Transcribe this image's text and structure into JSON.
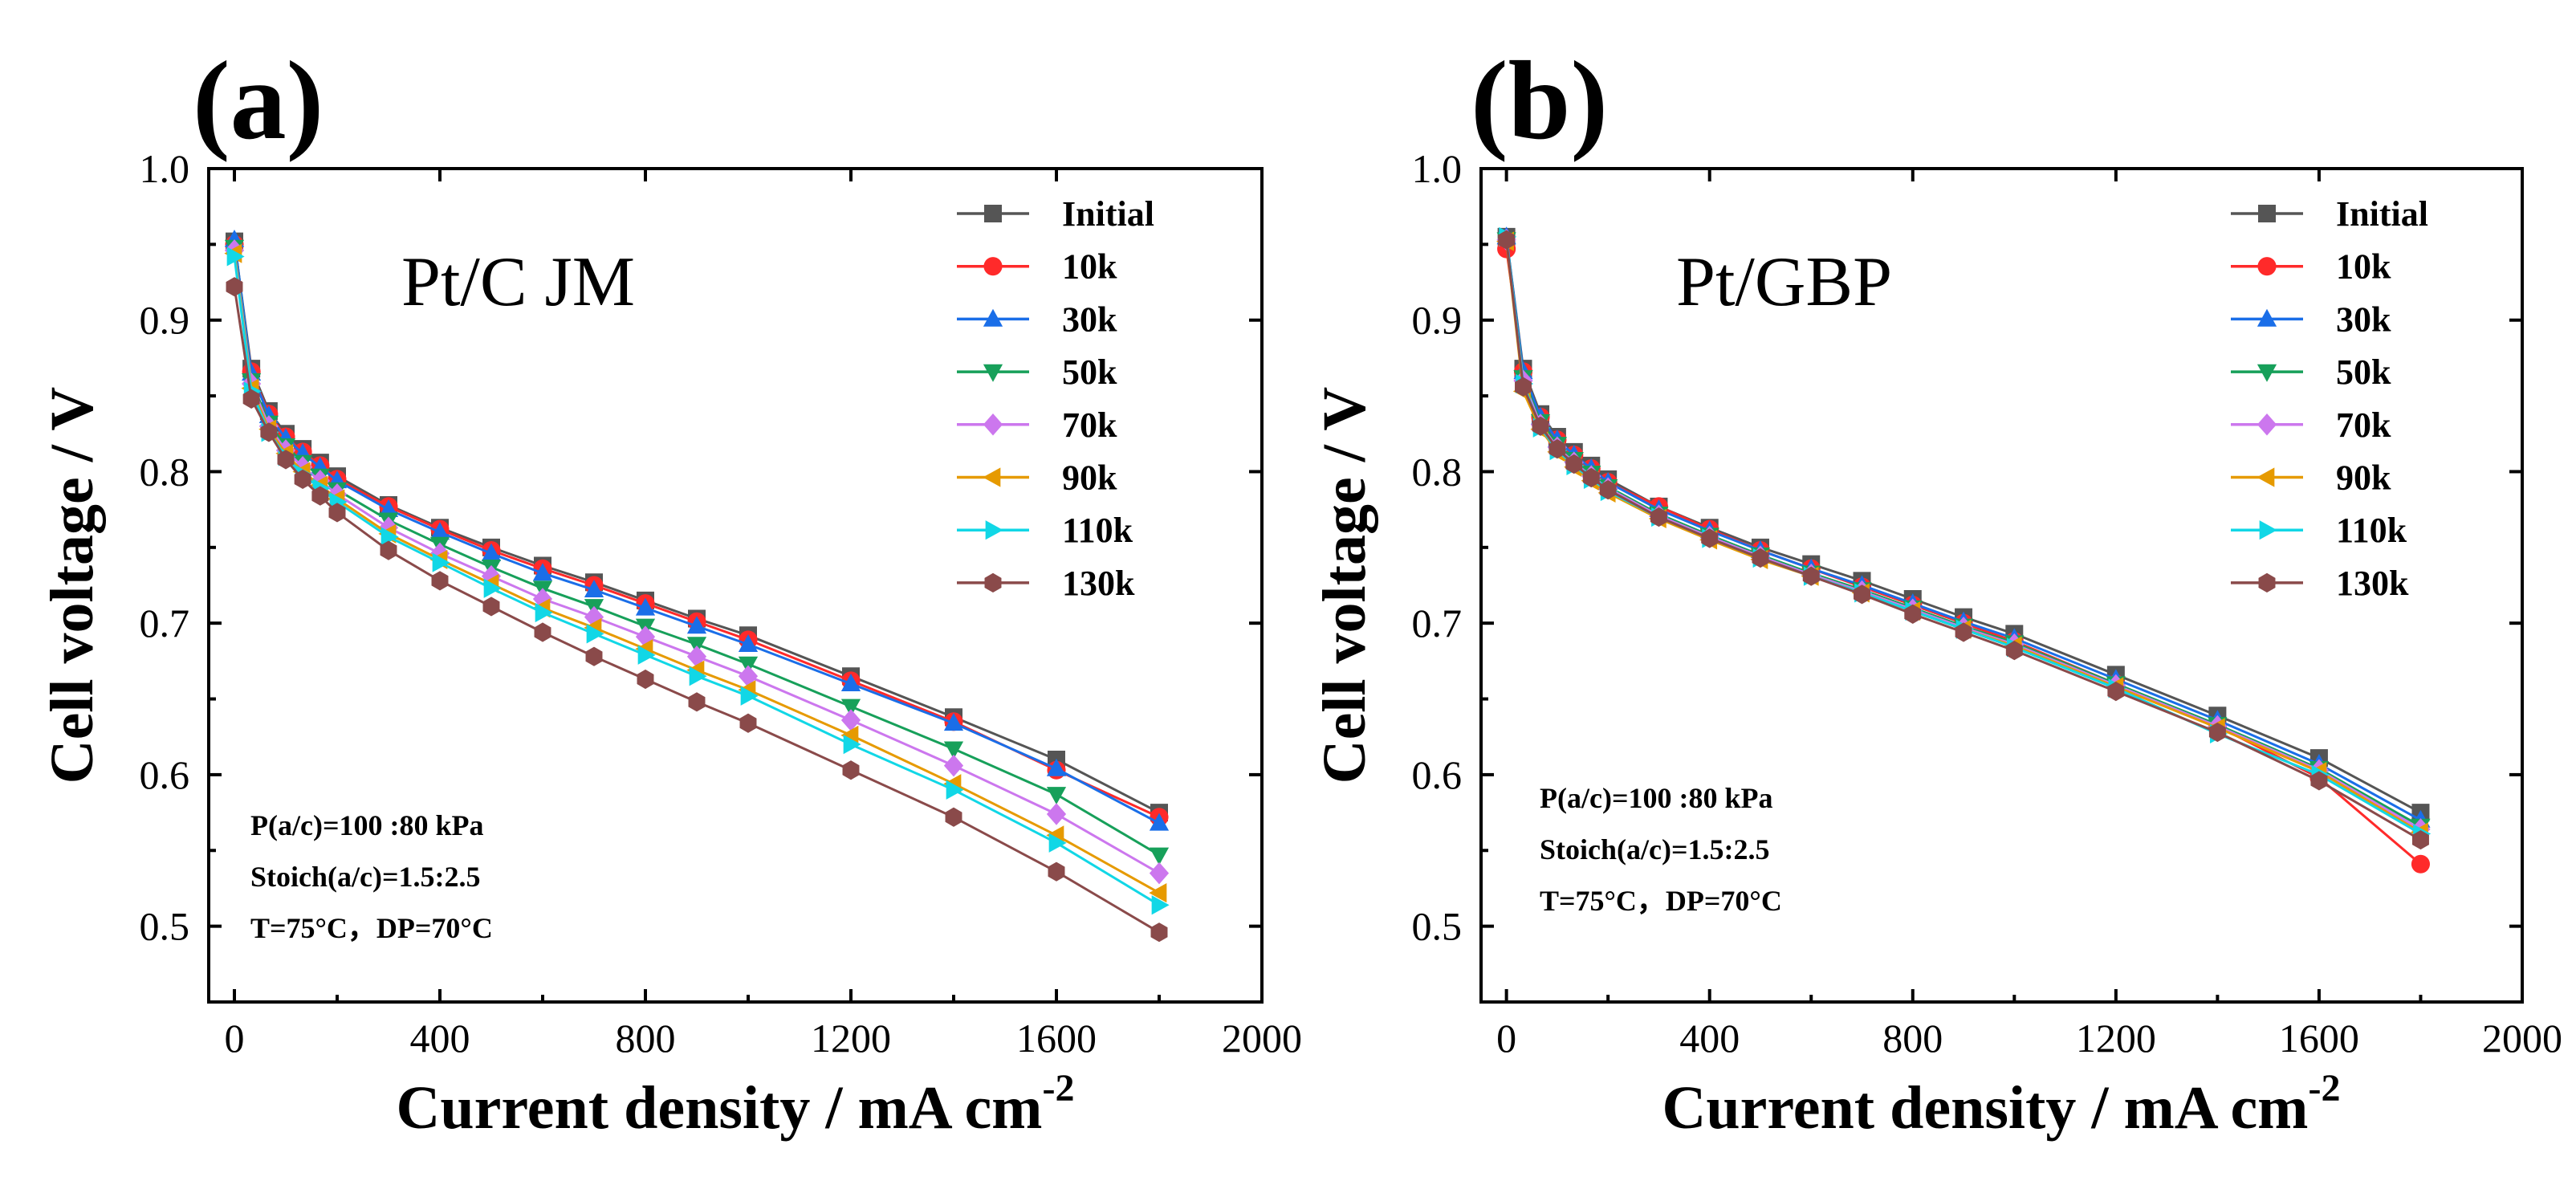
{
  "chart_data": [
    {
      "type": "line",
      "panel_label": "(a)",
      "annotation": "Pt/C  JM",
      "xlabel_main": "Current density / mA cm",
      "xlabel_exp": "-2",
      "ylabel": "Cell voltage / V",
      "xlim": [
        -50,
        2000
      ],
      "ylim": [
        0.45,
        1.0
      ],
      "xticks": [
        "0",
        "400",
        "800",
        "1200",
        "1600",
        "2000"
      ],
      "yticks": [
        "0.5",
        "0.6",
        "0.7",
        "0.8",
        "0.9",
        "1.0"
      ],
      "conditions": [
        "P(a/c)=100 :80 kPa",
        "Stoich(a/c)=1.5:2.5",
        "T=75°C，DP=70°C"
      ],
      "x": [
        0,
        33,
        67,
        100,
        133,
        167,
        200,
        300,
        400,
        500,
        600,
        700,
        800,
        900,
        1000,
        1200,
        1400,
        1600,
        1800
      ],
      "series": [
        {
          "name": "Initial",
          "color": "#555555",
          "marker": "square",
          "values": [
            0.952,
            0.868,
            0.84,
            0.825,
            0.815,
            0.806,
            0.797,
            0.778,
            0.763,
            0.75,
            0.738,
            0.727,
            0.715,
            0.703,
            0.692,
            0.665,
            0.638,
            0.61,
            0.575
          ]
        },
        {
          "name": "10k",
          "color": "#ff2a2a",
          "marker": "circle",
          "values": [
            0.95,
            0.866,
            0.838,
            0.823,
            0.813,
            0.804,
            0.795,
            0.777,
            0.762,
            0.748,
            0.736,
            0.725,
            0.713,
            0.701,
            0.689,
            0.662,
            0.635,
            0.603,
            0.572
          ]
        },
        {
          "name": "30k",
          "color": "#1a6ee8",
          "marker": "triangle-up",
          "values": [
            0.953,
            0.865,
            0.837,
            0.822,
            0.812,
            0.803,
            0.794,
            0.775,
            0.76,
            0.746,
            0.733,
            0.722,
            0.71,
            0.698,
            0.686,
            0.66,
            0.634,
            0.604,
            0.568
          ]
        },
        {
          "name": "50k",
          "color": "#17a05a",
          "marker": "triangle-down",
          "values": [
            0.948,
            0.86,
            0.832,
            0.817,
            0.806,
            0.797,
            0.788,
            0.768,
            0.752,
            0.737,
            0.723,
            0.711,
            0.698,
            0.686,
            0.673,
            0.645,
            0.617,
            0.587,
            0.547
          ]
        },
        {
          "name": "70k",
          "color": "#cc77ee",
          "marker": "diamond",
          "values": [
            0.946,
            0.858,
            0.83,
            0.814,
            0.803,
            0.794,
            0.785,
            0.763,
            0.746,
            0.731,
            0.716,
            0.704,
            0.691,
            0.678,
            0.665,
            0.636,
            0.606,
            0.574,
            0.535
          ]
        },
        {
          "name": "90k",
          "color": "#e69a00",
          "marker": "triangle-left",
          "values": [
            0.944,
            0.855,
            0.828,
            0.812,
            0.8,
            0.791,
            0.782,
            0.759,
            0.742,
            0.726,
            0.71,
            0.697,
            0.683,
            0.669,
            0.656,
            0.626,
            0.594,
            0.56,
            0.522
          ]
        },
        {
          "name": "110k",
          "color": "#11d7e6",
          "marker": "triangle-right",
          "values": [
            0.942,
            0.853,
            0.826,
            0.81,
            0.798,
            0.789,
            0.78,
            0.757,
            0.74,
            0.723,
            0.707,
            0.693,
            0.679,
            0.665,
            0.652,
            0.62,
            0.59,
            0.555,
            0.514
          ]
        },
        {
          "name": "130k",
          "color": "#8a4a4a",
          "marker": "hexagon",
          "values": [
            0.922,
            0.848,
            0.826,
            0.808,
            0.795,
            0.784,
            0.773,
            0.748,
            0.728,
            0.711,
            0.694,
            0.678,
            0.663,
            0.648,
            0.634,
            0.603,
            0.572,
            0.536,
            0.496
          ]
        }
      ]
    },
    {
      "type": "line",
      "panel_label": "(b)",
      "annotation": "Pt/GBP",
      "xlabel_main": "Current density / mA cm",
      "xlabel_exp": "-2",
      "ylabel": "Cell voltage / V",
      "xlim": [
        -50,
        2000
      ],
      "ylim": [
        0.45,
        1.0
      ],
      "xticks": [
        "0",
        "400",
        "800",
        "1200",
        "1600",
        "2000"
      ],
      "yticks": [
        "0.5",
        "0.6",
        "0.7",
        "0.8",
        "0.9",
        "1.0"
      ],
      "conditions": [
        "P(a/c)=100 :80 kPa",
        "Stoich(a/c)=1.5:2.5",
        "T=75°C，DP=70°C"
      ],
      "x": [
        0,
        33,
        67,
        100,
        133,
        167,
        200,
        300,
        400,
        500,
        600,
        700,
        800,
        900,
        1000,
        1200,
        1400,
        1600,
        1800
      ],
      "series": [
        {
          "name": "Initial",
          "color": "#555555",
          "marker": "square",
          "values": [
            0.955,
            0.868,
            0.838,
            0.823,
            0.813,
            0.804,
            0.795,
            0.777,
            0.763,
            0.75,
            0.739,
            0.728,
            0.716,
            0.704,
            0.693,
            0.666,
            0.639,
            0.611,
            0.575
          ]
        },
        {
          "name": "10k",
          "color": "#ff2a2a",
          "marker": "circle",
          "values": [
            0.947,
            0.866,
            0.836,
            0.821,
            0.811,
            0.802,
            0.793,
            0.777,
            0.762,
            0.748,
            0.736,
            0.724,
            0.712,
            0.7,
            0.688,
            0.66,
            0.632,
            0.598,
            0.541
          ]
        },
        {
          "name": "30k",
          "color": "#1a6ee8",
          "marker": "triangle-up",
          "values": [
            0.955,
            0.866,
            0.836,
            0.821,
            0.811,
            0.802,
            0.793,
            0.775,
            0.761,
            0.748,
            0.736,
            0.725,
            0.713,
            0.701,
            0.69,
            0.663,
            0.636,
            0.607,
            0.57
          ]
        },
        {
          "name": "50k",
          "color": "#17a05a",
          "marker": "triangle-down",
          "values": [
            0.953,
            0.862,
            0.833,
            0.818,
            0.808,
            0.799,
            0.79,
            0.772,
            0.758,
            0.745,
            0.733,
            0.722,
            0.71,
            0.698,
            0.687,
            0.66,
            0.633,
            0.604,
            0.566
          ]
        },
        {
          "name": "70k",
          "color": "#cc77ee",
          "marker": "diamond",
          "values": [
            0.953,
            0.86,
            0.831,
            0.816,
            0.806,
            0.797,
            0.789,
            0.771,
            0.757,
            0.744,
            0.732,
            0.721,
            0.709,
            0.697,
            0.686,
            0.659,
            0.632,
            0.603,
            0.564
          ]
        },
        {
          "name": "90k",
          "color": "#e69a00",
          "marker": "triangle-left",
          "values": [
            0.952,
            0.853,
            0.828,
            0.813,
            0.803,
            0.794,
            0.786,
            0.769,
            0.755,
            0.742,
            0.731,
            0.72,
            0.708,
            0.696,
            0.685,
            0.658,
            0.631,
            0.602,
            0.562
          ]
        },
        {
          "name": "110k",
          "color": "#11d7e6",
          "marker": "triangle-right",
          "values": [
            0.955,
            0.858,
            0.829,
            0.814,
            0.804,
            0.795,
            0.787,
            0.77,
            0.756,
            0.743,
            0.731,
            0.72,
            0.708,
            0.696,
            0.684,
            0.657,
            0.627,
            0.6,
            0.561
          ]
        },
        {
          "name": "130k",
          "color": "#8a4a4a",
          "marker": "hexagon",
          "values": [
            0.953,
            0.856,
            0.83,
            0.815,
            0.805,
            0.796,
            0.788,
            0.77,
            0.756,
            0.743,
            0.731,
            0.719,
            0.706,
            0.694,
            0.682,
            0.655,
            0.628,
            0.596,
            0.557
          ]
        }
      ]
    }
  ]
}
